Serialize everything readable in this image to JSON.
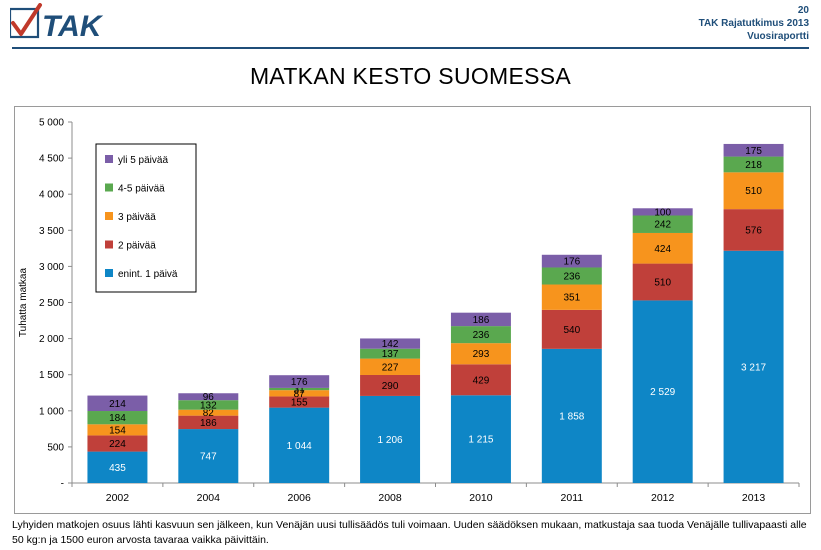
{
  "header": {
    "logo_text": "TAK",
    "page_number": "20",
    "report_title": "TAK Rajatutkimus 2013",
    "report_subtitle": "Vuosiraportti"
  },
  "page_title": "MATKAN KESTO SUOMESSA",
  "caption": "Lyhyiden matkojen osuus lähti kasvuun sen jälkeen, kun Venäjän uusi tullisäädös tuli voimaan. Uuden säädöksen mukaan, matkustaja saa tuoda Venäjälle tullivapaasti alle 50 kg:n ja 1500 euron arvosta tavaraa vaikka päivittäin.",
  "colors": {
    "brand": "#1f4e79",
    "series": [
      "#0e86c6",
      "#c0403a",
      "#f7941d",
      "#5aa84f",
      "#7b5ea8"
    ]
  },
  "chart_data": {
    "type": "bar",
    "stacked": true,
    "title": "",
    "xlabel": "",
    "ylabel": "Tuhatta matkaa",
    "ylim": [
      0,
      5000
    ],
    "y_ticks": [
      "-",
      "500",
      "1 000",
      "1 500",
      "2 000",
      "2 500",
      "3 000",
      "3 500",
      "4 000",
      "4 500",
      "5 000"
    ],
    "categories": [
      "2002",
      "2004",
      "2006",
      "2008",
      "2010",
      "2011",
      "2012",
      "2013"
    ],
    "legend_position": "top-left",
    "grid": false,
    "series": [
      {
        "name": "enint. 1 päivä",
        "values": [
          435,
          747,
          1044,
          1206,
          1215,
          1858,
          2529,
          3217
        ],
        "labels": [
          "435",
          "747",
          "1 044",
          "1 206",
          "1 215",
          "1 858",
          "2 529",
          "3 217"
        ]
      },
      {
        "name": "2 päivää",
        "values": [
          224,
          186,
          155,
          290,
          429,
          540,
          510,
          576
        ],
        "labels": [
          "224",
          "186",
          "155",
          "290",
          "429",
          "540",
          "510",
          "576"
        ]
      },
      {
        "name": "3 päivää",
        "values": [
          154,
          82,
          87,
          227,
          293,
          351,
          424,
          510
        ],
        "labels": [
          "154",
          "82",
          "87",
          "227",
          "293",
          "351",
          "424",
          "510"
        ]
      },
      {
        "name": "4-5 päivää",
        "values": [
          184,
          132,
          31,
          137,
          236,
          236,
          242,
          218
        ],
        "labels": [
          "184",
          "132",
          "31",
          "137",
          "236",
          "236",
          "242",
          "218"
        ]
      },
      {
        "name": "yli 5 päivää",
        "values": [
          214,
          96,
          176,
          142,
          186,
          176,
          100,
          175
        ],
        "labels": [
          "214",
          "96",
          "176",
          "142",
          "186",
          "176",
          "100",
          "175"
        ]
      }
    ]
  }
}
